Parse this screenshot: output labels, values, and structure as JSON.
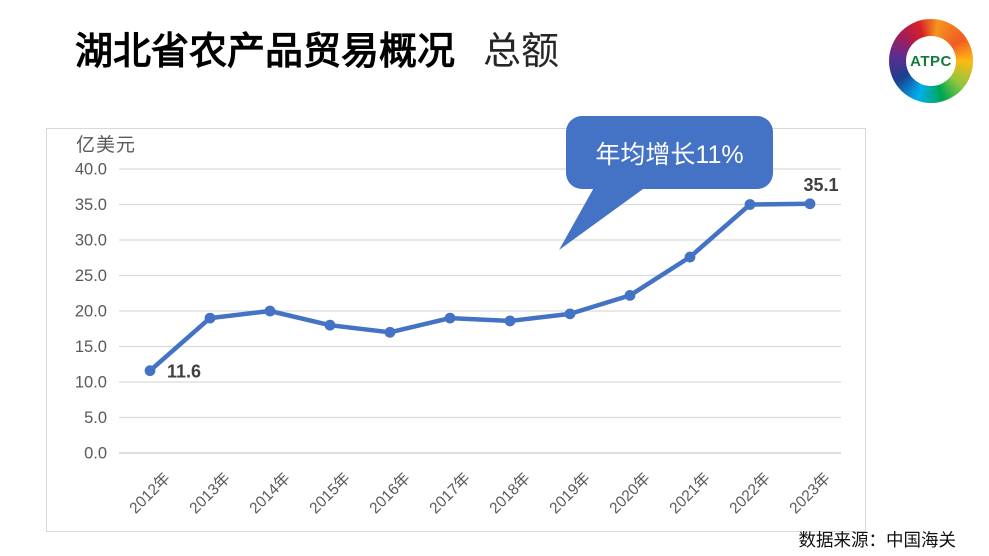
{
  "header": {
    "title": "湖北省农产品贸易概况",
    "subtitle": "总额",
    "logo_text": "ATPC"
  },
  "chart": {
    "unit_label": "亿美元",
    "callout": "年均增长11%"
  },
  "chart_data": {
    "type": "line",
    "title": "湖北省农产品贸易概况 总额",
    "ylabel": "亿美元",
    "xlabel": "",
    "categories": [
      "2012年",
      "2013年",
      "2014年",
      "2015年",
      "2016年",
      "2017年",
      "2018年",
      "2019年",
      "2020年",
      "2021年",
      "2022年",
      "2023年"
    ],
    "values": [
      11.6,
      19.0,
      20.0,
      18.0,
      17.0,
      19.0,
      18.6,
      19.6,
      22.2,
      27.6,
      35.0,
      35.1
    ],
    "ylim": [
      0,
      40
    ],
    "ytick_step": 5,
    "grid": true,
    "legend": false,
    "data_labels": {
      "first": "11.6",
      "last": "35.1"
    },
    "annotation": "年均增长11%",
    "colors": {
      "line": "#4472C4",
      "callout": "#4472C4",
      "grid": "#D9D9D9",
      "zero_line": "#C9C9C9",
      "axis_text": "#595959",
      "data_label": "#404040"
    }
  },
  "footer": {
    "source": "数据来源：中国海关"
  }
}
